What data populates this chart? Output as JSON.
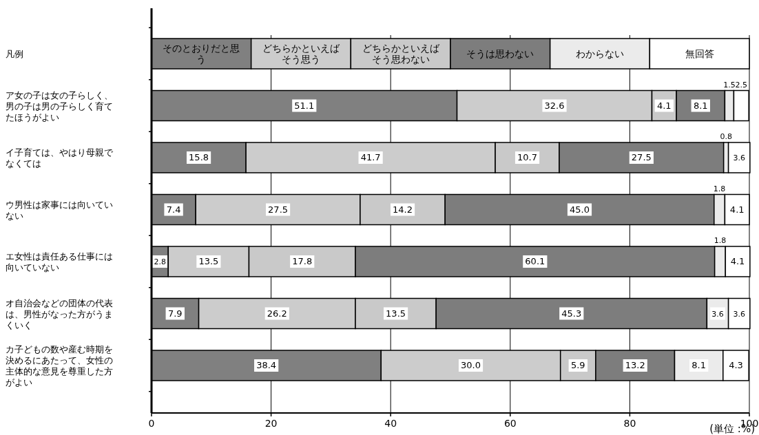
{
  "chart_data": {
    "type": "bar",
    "orientation": "horizontal",
    "stacked": true,
    "legend": "top",
    "legend_title": "凡例",
    "xlabel": "(単位 :%)",
    "grid": "x",
    "categories": [
      "ア女の子は女の子らしく、男の子は男の子らしく育てたほうがよい",
      "イ子育ては、やはり母親でなくては",
      "ウ男性は家事には向いていない",
      "エ女性は責任ある仕事には向いていない",
      "オ自治会などの団体の代表は、男性がなった方がうまくいく",
      "カ子どもの数や産む時期を決めるにあたって、女性の主体的な意見を尊重した方がよい"
    ],
    "xlim": [
      0,
      100
    ],
    "xticks": [
      0,
      20,
      40,
      60,
      80,
      100
    ],
    "series": [
      {
        "name": "そのとおりだと思う",
        "color": "#808080",
        "values": [
          51.1,
          15.8,
          7.4,
          2.8,
          7.9,
          38.4
        ],
        "value_labels": [
          "51.1",
          "15.8",
          "7.4",
          "2.8",
          "7.9",
          "38.4"
        ]
      },
      {
        "name": "どちらかといえばそう思う",
        "color": "#cccccc",
        "values": [
          32.6,
          41.7,
          27.5,
          13.5,
          26.2,
          30.0
        ],
        "value_labels": [
          "32.6",
          "41.7",
          "27.5",
          "13.5",
          "26.2",
          "30.0"
        ]
      },
      {
        "name": "どちらかといえばそう思わない",
        "color": "#c9c9c9",
        "values": [
          4.1,
          10.7,
          14.2,
          17.8,
          13.5,
          5.9
        ],
        "value_labels": [
          "4.1",
          "10.7",
          "14.2",
          "17.8",
          "13.5",
          "5.9"
        ]
      },
      {
        "name": "そうは思わない",
        "color": "#7d7d7d",
        "values": [
          8.1,
          27.5,
          45.0,
          60.1,
          45.3,
          13.2
        ],
        "value_labels": [
          "8.1",
          "27.5",
          "45.0",
          "60.1",
          "45.3",
          "13.2"
        ]
      },
      {
        "name": "わからない",
        "color": "#ebebeb",
        "values": [
          1.5,
          0.8,
          1.8,
          1.8,
          3.6,
          8.1
        ],
        "value_labels": [
          "1.5",
          "0.8",
          "1.8",
          "1.8",
          "3.6",
          "8.1"
        ]
      },
      {
        "name": "無回答",
        "color": "#ffffff",
        "values": [
          2.5,
          3.6,
          4.1,
          4.1,
          3.6,
          4.3
        ],
        "value_labels": [
          "2.5",
          "3.6",
          "4.1",
          "4.1",
          "3.6",
          "4.3"
        ]
      }
    ]
  }
}
